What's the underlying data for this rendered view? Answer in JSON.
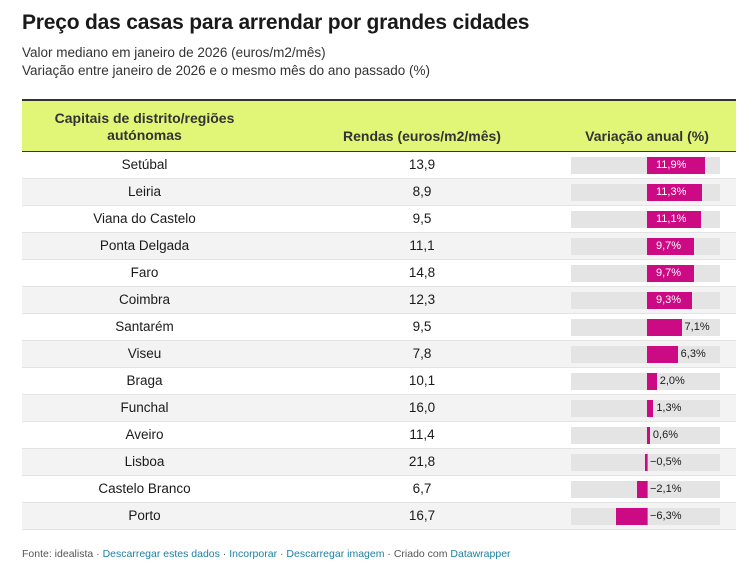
{
  "title": "Preço das casas para arrendar por grandes cidades",
  "subtitle_1": "Valor mediano em janeiro de 2026 (euros/m2/mês)",
  "subtitle_2": "Variação entre janeiro de 2026 e o mesmo mês do ano passado (%)",
  "columns": {
    "city": "Capitais de distrito/regiões autónomas",
    "rent": "Rendas (euros/m2/mês)",
    "variation": "Variação anual (%)"
  },
  "colors": {
    "header_bg": "#e1f576",
    "bar": "#cc0a84",
    "bar_track": "#e4e4e4"
  },
  "chart_data": {
    "type": "table",
    "title": "Preço das casas para arrendar por grandes cidades",
    "columns": [
      "Capitais de distrito/regiões autónomas",
      "Rendas (euros/m2/mês)",
      "Variação anual (%)"
    ],
    "variation_range": [
      -10,
      15
    ],
    "rows": [
      {
        "city": "Setúbal",
        "rent": "13,9",
        "variation": 11.9,
        "variation_label": "11,9%"
      },
      {
        "city": "Leiria",
        "rent": "8,9",
        "variation": 11.3,
        "variation_label": "11,3%"
      },
      {
        "city": "Viana do Castelo",
        "rent": "9,5",
        "variation": 11.1,
        "variation_label": "11,1%"
      },
      {
        "city": "Ponta Delgada",
        "rent": "11,1",
        "variation": 9.7,
        "variation_label": "9,7%"
      },
      {
        "city": "Faro",
        "rent": "14,8",
        "variation": 9.7,
        "variation_label": "9,7%"
      },
      {
        "city": "Coimbra",
        "rent": "12,3",
        "variation": 9.3,
        "variation_label": "9,3%"
      },
      {
        "city": "Santarém",
        "rent": "9,5",
        "variation": 7.1,
        "variation_label": "7,1%"
      },
      {
        "city": "Viseu",
        "rent": "7,8",
        "variation": 6.3,
        "variation_label": "6,3%"
      },
      {
        "city": "Braga",
        "rent": "10,1",
        "variation": 2.0,
        "variation_label": "2,0%"
      },
      {
        "city": "Funchal",
        "rent": "16,0",
        "variation": 1.3,
        "variation_label": "1,3%"
      },
      {
        "city": "Aveiro",
        "rent": "11,4",
        "variation": 0.6,
        "variation_label": "0,6%"
      },
      {
        "city": "Lisboa",
        "rent": "21,8",
        "variation": -0.5,
        "variation_label": "−0,5%"
      },
      {
        "city": "Castelo Branco",
        "rent": "6,7",
        "variation": -2.1,
        "variation_label": "−2,1%"
      },
      {
        "city": "Porto",
        "rent": "16,7",
        "variation": -6.3,
        "variation_label": "−6,3%"
      }
    ]
  },
  "footer": {
    "source": "Fonte: idealista",
    "sep": " · ",
    "download_data": "Descarregar estes dados",
    "embed": "Incorporar",
    "download_image": "Descarregar imagem",
    "created_with": "Criado com",
    "datawrapper": "Datawrapper"
  }
}
